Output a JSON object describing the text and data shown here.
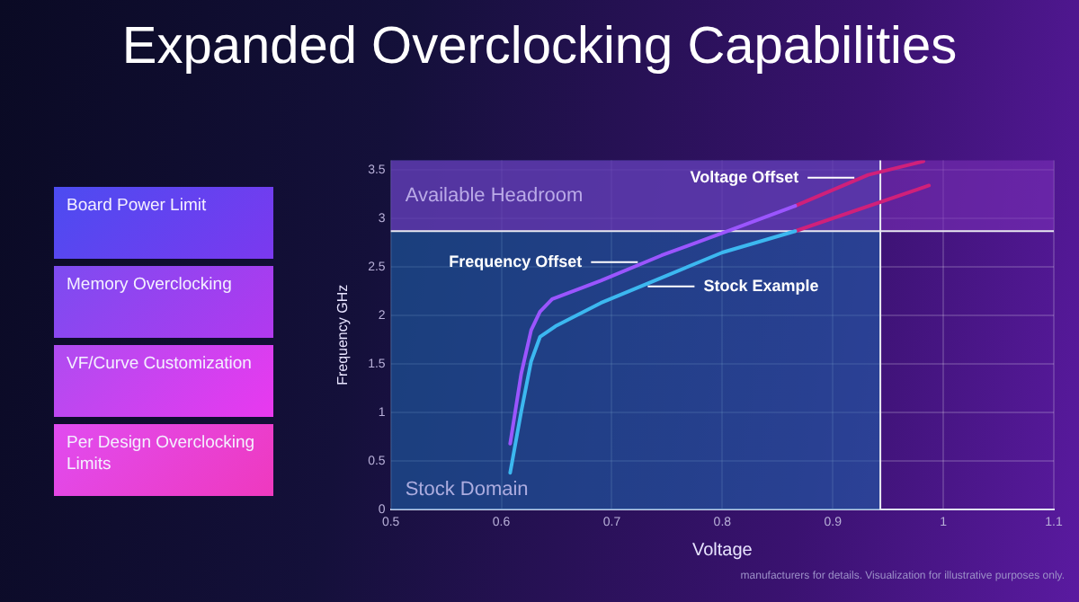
{
  "chart_data": [
    {
      "type": "other",
      "annotations": [
        "Board Power Limit",
        "Memory Overclocking",
        "VF/Curve Customization",
        "Per Design Overclocking Limits"
      ]
    },
    {
      "type": "line",
      "title": "Expanded Overclocking Capabilities",
      "xlabel": "Voltage",
      "ylabel": "Frequency GHz",
      "xlim": [
        0.5,
        1.1
      ],
      "xticks": [
        0.5,
        0.6,
        0.7,
        0.8,
        0.9,
        1,
        1.1
      ],
      "ylim": [
        0,
        3.6
      ],
      "yticks": [
        0,
        0.5,
        1,
        1.5,
        2,
        2.5,
        3,
        3.5
      ],
      "grid": true,
      "marker": "none",
      "line_style": "solid",
      "bands": [
        {
          "axis": "x",
          "from": 0.5,
          "to": 0.943,
          "label": "Stock Domain",
          "color": "#1e5fa8"
        },
        {
          "axis": "y",
          "from": 2.87,
          "to": 3.6,
          "label": "Available Headroom",
          "color": "#7a2fb8"
        }
      ],
      "ref_lines": [
        {
          "axis": "x",
          "value": 0.943,
          "color": "#e8e8f0"
        },
        {
          "axis": "y",
          "value": 2.87,
          "color": "#e8e8f0"
        }
      ],
      "series": [
        {
          "color": "#9b55ff",
          "x": [
            0.608,
            0.618,
            0.627,
            0.635,
            0.646,
            0.69,
            0.745,
            0.8,
            0.866
          ],
          "values": [
            0.68,
            1.4,
            1.85,
            2.04,
            2.17,
            2.36,
            2.62,
            2.85,
            3.13
          ]
        },
        {
          "color": "#3cb8f0",
          "x": [
            0.608,
            0.618,
            0.627,
            0.635,
            0.649,
            0.69,
            0.745,
            0.8,
            0.866
          ],
          "values": [
            0.38,
            1.01,
            1.53,
            1.78,
            1.89,
            2.13,
            2.39,
            2.65,
            2.87
          ]
        },
        {
          "color": "#d0207a",
          "x": [
            0.866,
            0.932,
            0.982
          ],
          "values": [
            3.13,
            3.45,
            3.59
          ]
        },
        {
          "color": "#d0207a",
          "x": [
            0.866,
            0.987
          ],
          "values": [
            2.87,
            3.34
          ]
        }
      ],
      "annotations": [
        {
          "text": "Voltage Offset",
          "x": 0.926,
          "y": 3.42
        },
        {
          "text": "Frequency Offset",
          "x": 0.73,
          "y": 2.55
        },
        {
          "text": "Stock Example",
          "x": 0.726,
          "y": 2.3
        },
        "manufacturers for details. Visualization for illustrative purposes only."
      ]
    }
  ]
}
